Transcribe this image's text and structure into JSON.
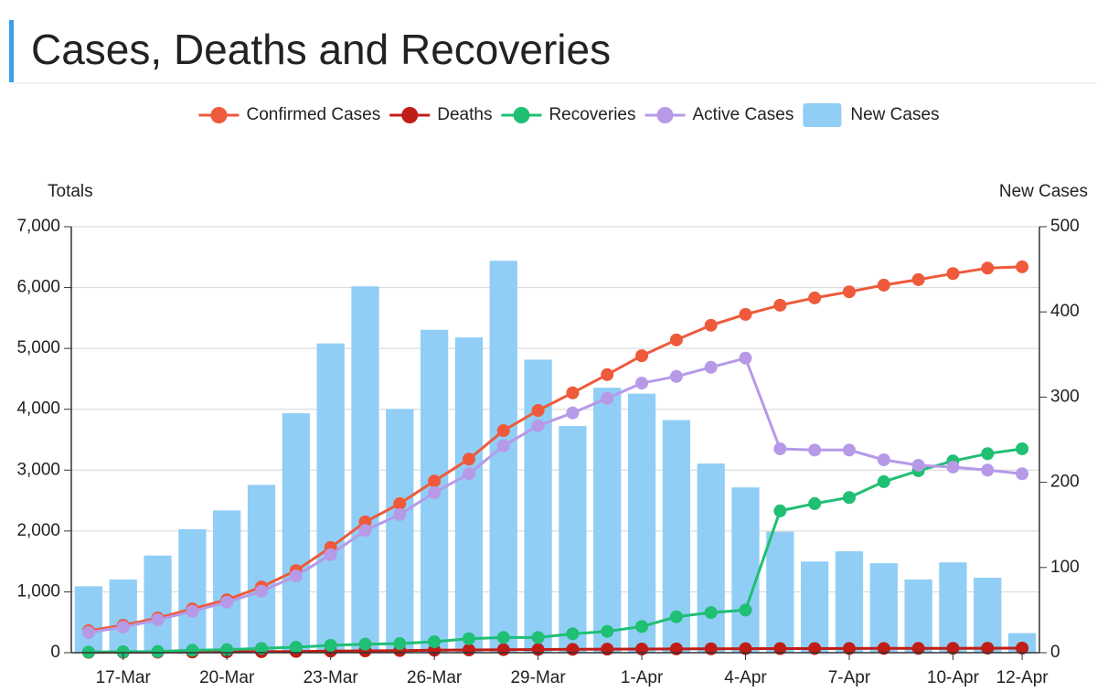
{
  "chart_data": {
    "type": "combo",
    "title": "Cases, Deaths and Recoveries",
    "y_label": "Totals",
    "y2_label": "New Cases",
    "categories": [
      null,
      "17-Mar",
      null,
      null,
      "20-Mar",
      null,
      null,
      "23-Mar",
      null,
      null,
      "26-Mar",
      null,
      null,
      "29-Mar",
      null,
      null,
      "1-Apr",
      null,
      null,
      "4-Apr",
      null,
      null,
      "7-Apr",
      null,
      null,
      "10-Apr",
      null,
      "12-Apr"
    ],
    "ylim": [
      0,
      7000
    ],
    "yticks": [
      0,
      {
        "value": 1000,
        "label": "1,000"
      },
      {
        "value": 2000,
        "label": "2,000"
      },
      {
        "value": 3000,
        "label": "3,000"
      },
      {
        "value": 4000,
        "label": "4,000"
      },
      {
        "value": 5000,
        "label": "5,000"
      },
      {
        "value": 6000,
        "label": "6,000"
      },
      {
        "value": 7000,
        "label": "7,000"
      }
    ],
    "y2lim": [
      0,
      500
    ],
    "y2ticks": [
      0,
      100,
      200,
      300,
      400,
      500
    ],
    "grid": true,
    "legend": "top",
    "series": [
      {
        "name": "Confirmed Cases",
        "type": "line",
        "color": "#ee5a3b",
        "values": [
          360,
          450,
          570,
          720,
          870,
          1080,
          1350,
          1730,
          2150,
          2450,
          2820,
          3180,
          3650,
          3980,
          4270,
          4570,
          4880,
          5140,
          5380,
          5560,
          5710,
          5830,
          5930,
          6040,
          6130,
          6230,
          6320,
          6340
        ]
      },
      {
        "name": "Deaths",
        "type": "line",
        "color": "#c01d16",
        "values": [
          5,
          7,
          9,
          11,
          14,
          17,
          20,
          25,
          30,
          35,
          40,
          45,
          50,
          52,
          55,
          58,
          60,
          62,
          64,
          66,
          67,
          68,
          69,
          70,
          71,
          72,
          74,
          75
        ]
      },
      {
        "name": "Recoveries",
        "type": "line",
        "color": "#1fbf74",
        "values": [
          10,
          15,
          20,
          40,
          50,
          70,
          90,
          120,
          140,
          150,
          180,
          230,
          250,
          250,
          310,
          350,
          430,
          590,
          660,
          700,
          2330,
          2450,
          2550,
          2810,
          2990,
          3150,
          3270,
          3350
        ]
      },
      {
        "name": "Active Cases",
        "type": "line",
        "color": "#b69ae8",
        "values": [
          330,
          420,
          540,
          680,
          830,
          1010,
          1260,
          1610,
          2010,
          2270,
          2630,
          2940,
          3400,
          3730,
          3940,
          4180,
          4430,
          4540,
          4690,
          4840,
          3350,
          3330,
          3330,
          3170,
          3080,
          3050,
          3000,
          2940
        ]
      },
      {
        "name": "New Cases",
        "type": "bar",
        "axis": "y2",
        "color": "#90cef6",
        "values": [
          78,
          86,
          114,
          145,
          167,
          197,
          281,
          363,
          430,
          286,
          379,
          370,
          460,
          344,
          266,
          311,
          304,
          273,
          222,
          194,
          142,
          107,
          119,
          105,
          86,
          106,
          88,
          23
        ]
      }
    ]
  }
}
